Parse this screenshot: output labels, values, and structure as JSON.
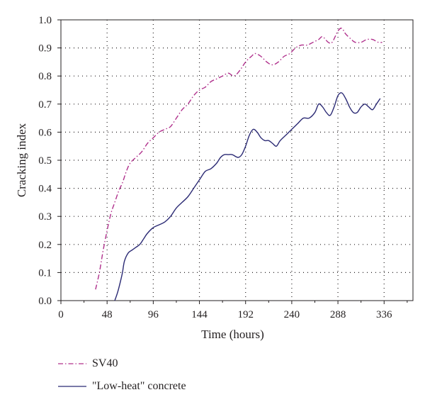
{
  "chart_data": {
    "type": "line",
    "title": "",
    "xlabel": "Time (hours)",
    "ylabel": "Cracking index",
    "xlim": [
      0,
      366
    ],
    "ylim": [
      0,
      1.0
    ],
    "x_ticks": [
      0,
      48,
      96,
      144,
      192,
      240,
      288,
      336
    ],
    "x_tick_labels": [
      "0",
      "48",
      "96",
      "144",
      "192",
      "240",
      "288",
      "336"
    ],
    "y_ticks": [
      0,
      0.1,
      0.2,
      0.3,
      0.4,
      0.5,
      0.6,
      0.7,
      0.8,
      0.9,
      1.0
    ],
    "y_tick_labels": [
      "0.0",
      "0.1",
      "0.2",
      "0.3",
      "0.4",
      "0.5",
      "0.6",
      "0.7",
      "0.8",
      "0.9",
      "1.0"
    ],
    "grid": "dotted",
    "legend_position": "below",
    "series": [
      {
        "name": "SV40",
        "color": "#b0308c",
        "line_style": "dash-dot",
        "points": [
          [
            36,
            0.04
          ],
          [
            40,
            0.1
          ],
          [
            44,
            0.18
          ],
          [
            48,
            0.25
          ],
          [
            52,
            0.31
          ],
          [
            56,
            0.35
          ],
          [
            60,
            0.39
          ],
          [
            64,
            0.42
          ],
          [
            68,
            0.46
          ],
          [
            72,
            0.49
          ],
          [
            78,
            0.51
          ],
          [
            84,
            0.53
          ],
          [
            90,
            0.56
          ],
          [
            96,
            0.58
          ],
          [
            102,
            0.6
          ],
          [
            108,
            0.61
          ],
          [
            114,
            0.62
          ],
          [
            120,
            0.65
          ],
          [
            126,
            0.68
          ],
          [
            132,
            0.7
          ],
          [
            138,
            0.73
          ],
          [
            144,
            0.75
          ],
          [
            150,
            0.76
          ],
          [
            156,
            0.78
          ],
          [
            162,
            0.79
          ],
          [
            168,
            0.8
          ],
          [
            174,
            0.81
          ],
          [
            180,
            0.8
          ],
          [
            186,
            0.82
          ],
          [
            192,
            0.85
          ],
          [
            198,
            0.87
          ],
          [
            202,
            0.88
          ],
          [
            208,
            0.87
          ],
          [
            214,
            0.85
          ],
          [
            220,
            0.84
          ],
          [
            226,
            0.85
          ],
          [
            232,
            0.87
          ],
          [
            238,
            0.88
          ],
          [
            244,
            0.9
          ],
          [
            250,
            0.91
          ],
          [
            256,
            0.91
          ],
          [
            262,
            0.92
          ],
          [
            268,
            0.93
          ],
          [
            272,
            0.94
          ],
          [
            278,
            0.92
          ],
          [
            282,
            0.92
          ],
          [
            288,
            0.96
          ],
          [
            292,
            0.97
          ],
          [
            296,
            0.95
          ],
          [
            302,
            0.93
          ],
          [
            306,
            0.92
          ],
          [
            312,
            0.92
          ],
          [
            318,
            0.93
          ],
          [
            324,
            0.93
          ],
          [
            330,
            0.92
          ],
          [
            334,
            0.92
          ]
        ]
      },
      {
        "name": "\"Low-heat\" concrete",
        "color": "#2b2a74",
        "line_style": "solid",
        "points": [
          [
            56,
            0.0
          ],
          [
            59,
            0.03
          ],
          [
            62,
            0.07
          ],
          [
            64,
            0.1
          ],
          [
            66,
            0.14
          ],
          [
            70,
            0.17
          ],
          [
            74,
            0.18
          ],
          [
            78,
            0.19
          ],
          [
            82,
            0.2
          ],
          [
            86,
            0.22
          ],
          [
            90,
            0.24
          ],
          [
            96,
            0.26
          ],
          [
            102,
            0.27
          ],
          [
            108,
            0.28
          ],
          [
            114,
            0.3
          ],
          [
            120,
            0.33
          ],
          [
            126,
            0.35
          ],
          [
            132,
            0.37
          ],
          [
            138,
            0.4
          ],
          [
            144,
            0.43
          ],
          [
            150,
            0.46
          ],
          [
            156,
            0.47
          ],
          [
            162,
            0.49
          ],
          [
            166,
            0.51
          ],
          [
            170,
            0.52
          ],
          [
            174,
            0.52
          ],
          [
            178,
            0.52
          ],
          [
            184,
            0.51
          ],
          [
            188,
            0.52
          ],
          [
            192,
            0.55
          ],
          [
            196,
            0.59
          ],
          [
            200,
            0.61
          ],
          [
            204,
            0.6
          ],
          [
            208,
            0.58
          ],
          [
            212,
            0.57
          ],
          [
            216,
            0.57
          ],
          [
            220,
            0.56
          ],
          [
            224,
            0.55
          ],
          [
            228,
            0.57
          ],
          [
            234,
            0.59
          ],
          [
            240,
            0.61
          ],
          [
            246,
            0.63
          ],
          [
            252,
            0.65
          ],
          [
            258,
            0.65
          ],
          [
            264,
            0.67
          ],
          [
            268,
            0.7
          ],
          [
            272,
            0.69
          ],
          [
            276,
            0.67
          ],
          [
            280,
            0.66
          ],
          [
            284,
            0.69
          ],
          [
            288,
            0.73
          ],
          [
            292,
            0.74
          ],
          [
            296,
            0.72
          ],
          [
            300,
            0.69
          ],
          [
            304,
            0.67
          ],
          [
            308,
            0.67
          ],
          [
            312,
            0.69
          ],
          [
            316,
            0.7
          ],
          [
            320,
            0.69
          ],
          [
            324,
            0.68
          ],
          [
            328,
            0.7
          ],
          [
            332,
            0.72
          ]
        ]
      }
    ]
  }
}
